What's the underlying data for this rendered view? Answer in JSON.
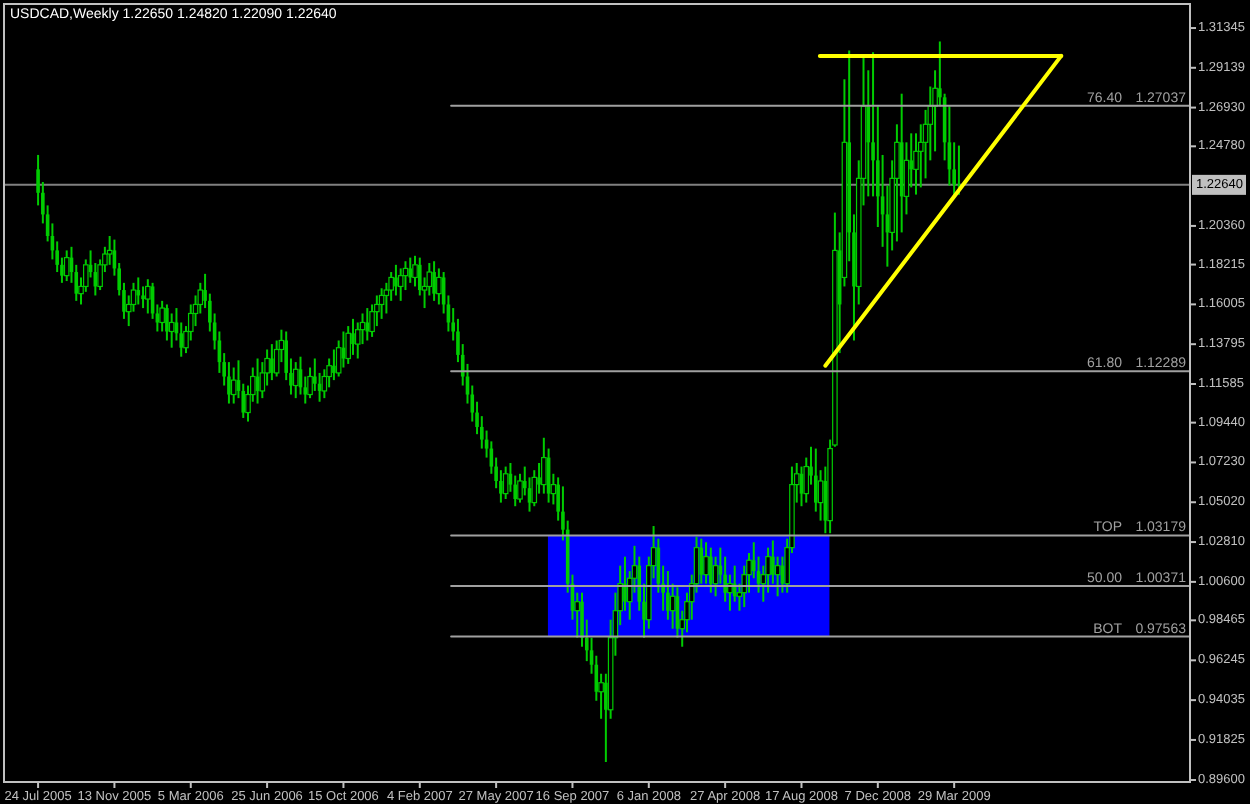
{
  "chart_data": {
    "type": "candlestick",
    "title": "USDCAD,Weekly  1.22650 1.24820 1.22090 1.22640",
    "color": "#00cc00",
    "x": [
      "2005-07-24",
      "2005-07-31",
      "2005-08-07",
      "2005-08-14",
      "2005-08-21",
      "2005-08-28",
      "2005-09-04",
      "2005-09-11",
      "2005-09-18",
      "2005-09-25",
      "2005-10-02",
      "2005-10-09",
      "2005-10-16",
      "2005-10-23",
      "2005-10-30",
      "2005-11-06",
      "2005-11-13",
      "2005-11-20",
      "2005-11-27",
      "2005-12-04",
      "2005-12-11",
      "2005-12-18",
      "2005-12-25",
      "2006-01-01",
      "2006-01-08",
      "2006-01-15",
      "2006-01-22",
      "2006-01-29",
      "2006-02-05",
      "2006-02-12",
      "2006-02-19",
      "2006-02-26",
      "2006-03-05",
      "2006-03-12",
      "2006-03-19",
      "2006-03-26",
      "2006-04-02",
      "2006-04-09",
      "2006-04-16",
      "2006-04-23",
      "2006-04-30",
      "2006-05-07",
      "2006-05-14",
      "2006-05-21",
      "2006-05-28",
      "2006-06-04",
      "2006-06-11",
      "2006-06-18",
      "2006-06-25",
      "2006-07-02",
      "2006-07-09",
      "2006-07-16",
      "2006-07-23",
      "2006-07-30",
      "2006-08-06",
      "2006-08-13",
      "2006-08-20",
      "2006-08-27",
      "2006-09-03",
      "2006-09-10",
      "2006-09-17",
      "2006-09-24",
      "2006-10-01",
      "2006-10-08",
      "2006-10-15",
      "2006-10-22",
      "2006-10-29",
      "2006-11-05",
      "2006-11-12",
      "2006-11-19",
      "2006-11-26",
      "2006-12-03",
      "2006-12-10",
      "2006-12-17",
      "2006-12-24",
      "2006-12-31",
      "2007-01-07",
      "2007-01-14",
      "2007-01-21",
      "2007-01-28",
      "2007-02-04",
      "2007-02-11",
      "2007-02-18",
      "2007-02-25",
      "2007-03-04",
      "2007-03-11",
      "2007-03-18",
      "2007-03-25",
      "2007-04-01",
      "2007-04-08",
      "2007-04-15",
      "2007-04-22",
      "2007-04-29",
      "2007-05-06",
      "2007-05-13",
      "2007-05-20",
      "2007-05-27",
      "2007-06-03",
      "2007-06-10",
      "2007-06-17",
      "2007-06-24",
      "2007-07-01",
      "2007-07-08",
      "2007-07-15",
      "2007-07-22",
      "2007-07-29",
      "2007-08-05",
      "2007-08-12",
      "2007-08-19",
      "2007-08-26",
      "2007-09-02",
      "2007-09-09",
      "2007-09-16",
      "2007-09-23",
      "2007-09-30",
      "2007-10-07",
      "2007-10-14",
      "2007-10-21",
      "2007-10-28",
      "2007-11-04",
      "2007-11-11",
      "2007-11-18",
      "2007-11-25",
      "2007-12-02",
      "2007-12-09",
      "2007-12-16",
      "2007-12-23",
      "2007-12-30",
      "2008-01-06",
      "2008-01-13",
      "2008-01-20",
      "2008-01-27",
      "2008-02-03",
      "2008-02-10",
      "2008-02-17",
      "2008-02-24",
      "2008-03-02",
      "2008-03-09",
      "2008-03-16",
      "2008-03-23",
      "2008-03-30",
      "2008-04-06",
      "2008-04-13",
      "2008-04-20",
      "2008-04-27",
      "2008-05-04",
      "2008-05-11",
      "2008-05-18",
      "2008-05-25",
      "2008-06-01",
      "2008-06-08",
      "2008-06-15",
      "2008-06-22",
      "2008-06-29",
      "2008-07-06",
      "2008-07-13",
      "2008-07-20",
      "2008-07-27",
      "2008-08-03",
      "2008-08-10",
      "2008-08-17",
      "2008-08-24",
      "2008-08-31",
      "2008-09-07",
      "2008-09-14",
      "2008-09-21",
      "2008-09-28",
      "2008-10-05",
      "2008-10-12",
      "2008-10-19",
      "2008-10-26",
      "2008-11-02",
      "2008-11-09",
      "2008-11-16",
      "2008-11-23",
      "2008-11-30",
      "2008-12-07",
      "2008-12-14",
      "2008-12-21",
      "2008-12-28",
      "2009-01-04",
      "2009-01-11",
      "2009-01-18",
      "2009-01-25",
      "2009-02-01",
      "2009-02-08",
      "2009-02-15",
      "2009-02-22",
      "2009-03-01",
      "2009-03-08",
      "2009-03-15",
      "2009-03-22",
      "2009-03-29",
      "2009-04-05"
    ],
    "ohlc": [
      [
        1.235,
        1.243,
        1.215,
        1.222
      ],
      [
        1.222,
        1.228,
        1.205,
        1.21
      ],
      [
        1.21,
        1.215,
        1.195,
        1.198
      ],
      [
        1.198,
        1.205,
        1.185,
        1.19
      ],
      [
        1.19,
        1.195,
        1.178,
        1.182
      ],
      [
        1.182,
        1.186,
        1.172,
        1.176
      ],
      [
        1.176,
        1.19,
        1.173,
        1.186
      ],
      [
        1.186,
        1.192,
        1.172,
        1.178
      ],
      [
        1.178,
        1.182,
        1.162,
        1.166
      ],
      [
        1.166,
        1.175,
        1.16,
        1.17
      ],
      [
        1.17,
        1.185,
        1.167,
        1.182
      ],
      [
        1.182,
        1.19,
        1.175,
        1.178
      ],
      [
        1.178,
        1.183,
        1.165,
        1.17
      ],
      [
        1.17,
        1.185,
        1.168,
        1.182
      ],
      [
        1.182,
        1.192,
        1.178,
        1.188
      ],
      [
        1.188,
        1.198,
        1.182,
        1.19
      ],
      [
        1.19,
        1.196,
        1.176,
        1.18
      ],
      [
        1.18,
        1.183,
        1.165,
        1.168
      ],
      [
        1.168,
        1.172,
        1.152,
        1.156
      ],
      [
        1.156,
        1.165,
        1.148,
        1.16
      ],
      [
        1.16,
        1.172,
        1.156,
        1.168
      ],
      [
        1.168,
        1.175,
        1.16,
        1.165
      ],
      [
        1.165,
        1.17,
        1.158,
        1.163
      ],
      [
        1.163,
        1.174,
        1.155,
        1.17
      ],
      [
        1.17,
        1.172,
        1.152,
        1.155
      ],
      [
        1.155,
        1.16,
        1.145,
        1.15
      ],
      [
        1.15,
        1.162,
        1.145,
        1.158
      ],
      [
        1.158,
        1.16,
        1.14,
        1.145
      ],
      [
        1.145,
        1.155,
        1.136,
        1.15
      ],
      [
        1.15,
        1.158,
        1.14,
        1.144
      ],
      [
        1.144,
        1.15,
        1.131,
        1.136
      ],
      [
        1.136,
        1.148,
        1.133,
        1.145
      ],
      [
        1.145,
        1.16,
        1.14,
        1.155
      ],
      [
        1.155,
        1.165,
        1.148,
        1.16
      ],
      [
        1.16,
        1.172,
        1.155,
        1.168
      ],
      [
        1.168,
        1.177,
        1.158,
        1.162
      ],
      [
        1.162,
        1.166,
        1.145,
        1.15
      ],
      [
        1.15,
        1.155,
        1.135,
        1.14
      ],
      [
        1.14,
        1.145,
        1.122,
        1.128
      ],
      [
        1.128,
        1.133,
        1.115,
        1.12
      ],
      [
        1.12,
        1.128,
        1.105,
        1.11
      ],
      [
        1.11,
        1.125,
        1.105,
        1.118
      ],
      [
        1.118,
        1.129,
        1.108,
        1.112
      ],
      [
        1.112,
        1.116,
        1.097,
        1.1
      ],
      [
        1.1,
        1.115,
        1.095,
        1.11
      ],
      [
        1.11,
        1.125,
        1.106,
        1.12
      ],
      [
        1.12,
        1.13,
        1.105,
        1.112
      ],
      [
        1.112,
        1.128,
        1.108,
        1.122
      ],
      [
        1.122,
        1.135,
        1.115,
        1.13
      ],
      [
        1.13,
        1.138,
        1.118,
        1.122
      ],
      [
        1.122,
        1.14,
        1.12,
        1.135
      ],
      [
        1.135,
        1.146,
        1.128,
        1.14
      ],
      [
        1.14,
        1.145,
        1.118,
        1.122
      ],
      [
        1.122,
        1.13,
        1.11,
        1.115
      ],
      [
        1.115,
        1.128,
        1.108,
        1.124
      ],
      [
        1.124,
        1.131,
        1.11,
        1.114
      ],
      [
        1.114,
        1.12,
        1.105,
        1.11
      ],
      [
        1.11,
        1.125,
        1.108,
        1.12
      ],
      [
        1.12,
        1.13,
        1.112,
        1.116
      ],
      [
        1.116,
        1.122,
        1.106,
        1.112
      ],
      [
        1.112,
        1.124,
        1.108,
        1.12
      ],
      [
        1.12,
        1.13,
        1.114,
        1.126
      ],
      [
        1.126,
        1.135,
        1.118,
        1.122
      ],
      [
        1.122,
        1.14,
        1.12,
        1.136
      ],
      [
        1.136,
        1.145,
        1.125,
        1.13
      ],
      [
        1.13,
        1.148,
        1.127,
        1.144
      ],
      [
        1.144,
        1.152,
        1.132,
        1.138
      ],
      [
        1.138,
        1.15,
        1.13,
        1.146
      ],
      [
        1.146,
        1.155,
        1.138,
        1.15
      ],
      [
        1.15,
        1.158,
        1.14,
        1.145
      ],
      [
        1.145,
        1.16,
        1.142,
        1.156
      ],
      [
        1.156,
        1.165,
        1.148,
        1.16
      ],
      [
        1.16,
        1.169,
        1.152,
        1.165
      ],
      [
        1.165,
        1.172,
        1.155,
        1.168
      ],
      [
        1.168,
        1.178,
        1.162,
        1.175
      ],
      [
        1.175,
        1.182,
        1.165,
        1.17
      ],
      [
        1.17,
        1.18,
        1.162,
        1.176
      ],
      [
        1.176,
        1.184,
        1.168,
        1.18
      ],
      [
        1.18,
        1.186,
        1.172,
        1.175
      ],
      [
        1.175,
        1.187,
        1.17,
        1.182
      ],
      [
        1.182,
        1.186,
        1.165,
        1.168
      ],
      [
        1.168,
        1.175,
        1.158,
        1.17
      ],
      [
        1.17,
        1.183,
        1.165,
        1.178
      ],
      [
        1.178,
        1.184,
        1.162,
        1.166
      ],
      [
        1.166,
        1.18,
        1.16,
        1.175
      ],
      [
        1.175,
        1.178,
        1.155,
        1.16
      ],
      [
        1.16,
        1.165,
        1.145,
        1.15
      ],
      [
        1.15,
        1.158,
        1.14,
        1.145
      ],
      [
        1.145,
        1.152,
        1.128,
        1.132
      ],
      [
        1.132,
        1.138,
        1.115,
        1.12
      ],
      [
        1.12,
        1.127,
        1.105,
        1.11
      ],
      [
        1.11,
        1.115,
        1.095,
        1.1
      ],
      [
        1.1,
        1.106,
        1.088,
        1.092
      ],
      [
        1.092,
        1.098,
        1.08,
        1.085
      ],
      [
        1.085,
        1.09,
        1.075,
        1.08
      ],
      [
        1.08,
        1.084,
        1.066,
        1.07
      ],
      [
        1.07,
        1.075,
        1.058,
        1.062
      ],
      [
        1.062,
        1.068,
        1.05,
        1.055
      ],
      [
        1.055,
        1.07,
        1.052,
        1.066
      ],
      [
        1.066,
        1.072,
        1.056,
        1.06
      ],
      [
        1.06,
        1.065,
        1.048,
        1.052
      ],
      [
        1.052,
        1.066,
        1.05,
        1.062
      ],
      [
        1.062,
        1.07,
        1.054,
        1.058
      ],
      [
        1.058,
        1.064,
        1.045,
        1.05
      ],
      [
        1.05,
        1.068,
        1.048,
        1.064
      ],
      [
        1.064,
        1.072,
        1.055,
        1.06
      ],
      [
        1.06,
        1.086,
        1.055,
        1.075
      ],
      [
        1.075,
        1.08,
        1.05,
        1.055
      ],
      [
        1.055,
        1.066,
        1.049,
        1.06
      ],
      [
        1.06,
        1.064,
        1.04,
        1.045
      ],
      [
        1.045,
        1.059,
        1.029,
        1.035
      ],
      [
        1.035,
        1.04,
        1.0,
        1.005
      ],
      [
        1.005,
        1.01,
        0.985,
        0.99
      ],
      [
        0.99,
        1.0,
        0.975,
        0.995
      ],
      [
        0.995,
        1.0,
        0.97,
        0.975
      ],
      [
        0.975,
        0.985,
        0.962,
        0.968
      ],
      [
        0.968,
        0.975,
        0.955,
        0.96
      ],
      [
        0.96,
        0.965,
        0.94,
        0.945
      ],
      [
        0.945,
        0.955,
        0.93,
        0.95
      ],
      [
        0.95,
        0.955,
        0.906,
        0.935
      ],
      [
        0.935,
        0.985,
        0.93,
        0.975
      ],
      [
        0.975,
        1.0,
        0.965,
        0.99
      ],
      [
        0.99,
        1.015,
        0.982,
        1.005
      ],
      [
        1.005,
        1.02,
        0.99,
        0.995
      ],
      [
        0.995,
        1.012,
        0.985,
        1.008
      ],
      [
        1.008,
        1.026,
        1.0,
        1.015
      ],
      [
        1.015,
        1.02,
        0.99,
        0.995
      ],
      [
        0.995,
        1.005,
        0.975,
        0.985
      ],
      [
        0.985,
        1.02,
        0.98,
        1.015
      ],
      [
        1.015,
        1.037,
        1.008,
        1.025
      ],
      [
        1.025,
        1.03,
        1.0,
        1.005
      ],
      [
        1.005,
        1.015,
        0.99,
        1.0
      ],
      [
        1.0,
        1.012,
        0.985,
        0.99
      ],
      [
        0.99,
        1.005,
        0.98,
        0.998
      ],
      [
        0.998,
        1.003,
        0.975,
        0.98
      ],
      [
        0.98,
        0.99,
        0.97,
        0.985
      ],
      [
        0.985,
        1.0,
        0.978,
        0.995
      ],
      [
        0.995,
        1.01,
        0.985,
        1.005
      ],
      [
        1.005,
        1.031,
        1.0,
        1.025
      ],
      [
        1.025,
        1.03,
        1.005,
        1.01
      ],
      [
        1.01,
        1.028,
        1.005,
        1.02
      ],
      [
        1.02,
        1.025,
        1.0,
        1.005
      ],
      [
        1.005,
        1.02,
        0.998,
        1.015
      ],
      [
        1.015,
        1.025,
        1.005,
        1.01
      ],
      [
        1.01,
        1.02,
        0.995,
        1.0
      ],
      [
        1.0,
        1.01,
        0.99,
        1.005
      ],
      [
        1.005,
        1.015,
        0.995,
        0.998
      ],
      [
        0.998,
        1.005,
        0.99,
        1.0
      ],
      [
        1.0,
        1.015,
        0.992,
        1.01
      ],
      [
        1.01,
        1.022,
        1.0,
        1.018
      ],
      [
        1.018,
        1.028,
        1.008,
        1.012
      ],
      [
        1.012,
        1.02,
        1.0,
        1.005
      ],
      [
        1.005,
        1.015,
        0.995,
        1.01
      ],
      [
        1.01,
        1.025,
        1.0,
        1.02
      ],
      [
        1.02,
        1.029,
        1.005,
        1.01
      ],
      [
        1.01,
        1.02,
        0.998,
        1.015
      ],
      [
        1.015,
        1.02,
        1.0,
        1.005
      ],
      [
        1.005,
        1.03,
        1.0,
        1.025
      ],
      [
        1.025,
        1.07,
        1.022,
        1.06
      ],
      [
        1.06,
        1.072,
        1.05,
        1.066
      ],
      [
        1.066,
        1.07,
        1.048,
        1.055
      ],
      [
        1.055,
        1.075,
        1.05,
        1.07
      ],
      [
        1.07,
        1.081,
        1.06,
        1.065
      ],
      [
        1.065,
        1.08,
        1.045,
        1.05
      ],
      [
        1.05,
        1.068,
        1.04,
        1.062
      ],
      [
        1.062,
        1.07,
        1.033,
        1.04
      ],
      [
        1.04,
        1.085,
        1.033,
        1.08
      ],
      [
        1.082,
        1.211,
        1.081,
        1.19
      ],
      [
        1.19,
        1.2,
        1.133,
        1.16
      ],
      [
        1.175,
        1.285,
        1.17,
        1.25
      ],
      [
        1.25,
        1.301,
        1.184,
        1.2
      ],
      [
        1.2,
        1.21,
        1.14,
        1.17
      ],
      [
        1.17,
        1.24,
        1.16,
        1.23
      ],
      [
        1.23,
        1.299,
        1.215,
        1.27
      ],
      [
        1.27,
        1.29,
        1.22,
        1.25
      ],
      [
        1.25,
        1.3,
        1.22,
        1.24
      ],
      [
        1.24,
        1.27,
        1.203,
        1.22
      ],
      [
        1.22,
        1.243,
        1.192,
        1.21
      ],
      [
        1.21,
        1.226,
        1.181,
        1.2
      ],
      [
        1.2,
        1.24,
        1.19,
        1.23
      ],
      [
        1.23,
        1.26,
        1.195,
        1.25
      ],
      [
        1.25,
        1.277,
        1.2,
        1.22
      ],
      [
        1.22,
        1.25,
        1.21,
        1.24
      ],
      [
        1.24,
        1.255,
        1.225,
        1.235
      ],
      [
        1.235,
        1.255,
        1.221,
        1.245
      ],
      [
        1.245,
        1.26,
        1.225,
        1.25
      ],
      [
        1.25,
        1.268,
        1.23,
        1.26
      ],
      [
        1.26,
        1.281,
        1.24,
        1.27
      ],
      [
        1.27,
        1.29,
        1.245,
        1.28
      ],
      [
        1.28,
        1.306,
        1.27,
        1.275
      ],
      [
        1.275,
        1.277,
        1.24,
        1.25
      ],
      [
        1.25,
        1.27,
        1.226,
        1.235
      ],
      [
        1.235,
        1.25,
        1.22,
        1.2265
      ],
      [
        1.2265,
        1.2482,
        1.2209,
        1.2264
      ]
    ],
    "xlim": [
      "2005-06-04",
      "2010-03-10"
    ],
    "xticks": [
      {
        "value": "2005-07-24",
        "label": "24 Jul 2005"
      },
      {
        "value": "2005-11-13",
        "label": "13 Nov 2005"
      },
      {
        "value": "2006-03-05",
        "label": "5 Mar 2006"
      },
      {
        "value": "2006-06-25",
        "label": "25 Jun 2006"
      },
      {
        "value": "2006-10-15",
        "label": "15 Oct 2006"
      },
      {
        "value": "2007-02-04",
        "label": "4 Feb 2007"
      },
      {
        "value": "2007-05-27",
        "label": "27 May 2007"
      },
      {
        "value": "2007-09-16",
        "label": "16 Sep 2007"
      },
      {
        "value": "2008-01-06",
        "label": "6 Jan 2008"
      },
      {
        "value": "2008-04-27",
        "label": "27 Apr 2008"
      },
      {
        "value": "2008-08-17",
        "label": "17 Aug 2008"
      },
      {
        "value": "2008-12-07",
        "label": "7 Dec 2008"
      },
      {
        "value": "2009-03-29",
        "label": "29 Mar 2009"
      }
    ],
    "ylim": [
      0.8949,
      1.3268
    ],
    "yticks": [
      1.31345,
      1.29139,
      {
        "value": 1.2693,
        "label": "1.26930"
      },
      {
        "value": 1.2478,
        "label": "1.24780"
      },
      {
        "value": 1.2036,
        "label": "1.20360"
      },
      1.18215,
      1.16005,
      1.13795,
      1.11585,
      {
        "value": 1.0944,
        "label": "1.09440"
      },
      {
        "value": 1.0723,
        "label": "1.07230"
      },
      {
        "value": 1.0502,
        "label": "1.05020"
      },
      {
        "value": 1.0281,
        "label": "1.02810"
      },
      {
        "value": 1.006,
        "label": "1.00600"
      },
      0.98465,
      0.96245,
      0.94035,
      0.91825,
      {
        "value": 0.896,
        "label": "0.89600"
      }
    ],
    "ref_lines": [
      {
        "axis": "y",
        "value": 1.2264,
        "label": "1.22640",
        "color": "#808080"
      }
    ],
    "series": [
      {
        "type": "line",
        "color": "#0000ff",
        "x": [
          "2007-08-11",
          "2008-09-27"
        ],
        "values": [
          null,
          null
        ],
        "lower": [
          0.976,
          0.976
        ],
        "upper": [
          1.032,
          1.032
        ]
      },
      {
        "type": "line",
        "name": "76.40",
        "color": "#a0a0a0",
        "x": [
          "2007-03-22",
          "2010-03-10"
        ],
        "values": [
          1.27037,
          1.27037
        ],
        "value_labels": [
          null,
          "1.27037"
        ]
      },
      {
        "type": "line",
        "name": "61.80",
        "color": "#a0a0a0",
        "x": [
          "2007-03-22",
          "2010-03-10"
        ],
        "values": [
          1.12289,
          1.12289
        ],
        "value_labels": [
          null,
          "1.12289"
        ]
      },
      {
        "type": "line",
        "name": "TOP",
        "color": "#a0a0a0",
        "x": [
          "2007-03-22",
          "2010-03-10"
        ],
        "values": [
          1.03179,
          1.03179
        ],
        "value_labels": [
          null,
          "1.03179"
        ]
      },
      {
        "type": "line",
        "name": "50.00",
        "color": "#a0a0a0",
        "x": [
          "2007-03-22",
          "2010-03-10"
        ],
        "values": [
          1.00371,
          1.00371
        ],
        "value_labels": [
          null,
          "1.00371"
        ]
      },
      {
        "type": "line",
        "name": "BOT",
        "color": "#a0a0a0",
        "x": [
          "2007-03-22",
          "2010-03-10"
        ],
        "values": [
          0.97563,
          0.97563
        ],
        "value_labels": [
          null,
          "0.97563"
        ]
      },
      {
        "type": "line",
        "color": "#ffff00",
        "x": [
          "2008-09-13",
          "2009-09-02"
        ],
        "values": [
          1.298,
          1.298
        ]
      },
      {
        "type": "line",
        "color": "#ffff00",
        "x": [
          "2008-09-21",
          "2009-09-02"
        ],
        "values": [
          1.126,
          1.298
        ]
      }
    ]
  }
}
